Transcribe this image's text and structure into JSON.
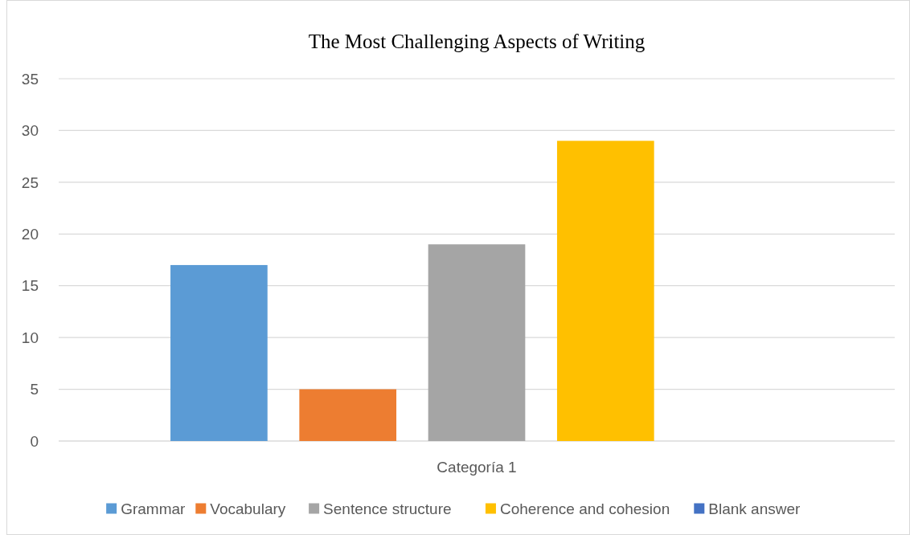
{
  "chart_data": {
    "type": "bar",
    "title": "The Most Challenging Aspects of Writing",
    "categories": [
      "Categoría 1"
    ],
    "series": [
      {
        "name": "Grammar",
        "color": "#5b9bd5",
        "values": [
          17
        ]
      },
      {
        "name": "Vocabulary",
        "color": "#ed7d31",
        "values": [
          5
        ]
      },
      {
        "name": "Sentence structure",
        "color": "#a5a5a5",
        "values": [
          19
        ]
      },
      {
        "name": "Coherence and cohesion",
        "color": "#ffc000",
        "values": [
          29
        ]
      },
      {
        "name": "Blank answer",
        "color": "#4472c4",
        "values": [
          0
        ]
      }
    ],
    "ylim": [
      0,
      35
    ],
    "yticks": [
      0,
      5,
      10,
      15,
      20,
      25,
      30,
      35
    ],
    "grid": "y",
    "legend": "bottom"
  }
}
